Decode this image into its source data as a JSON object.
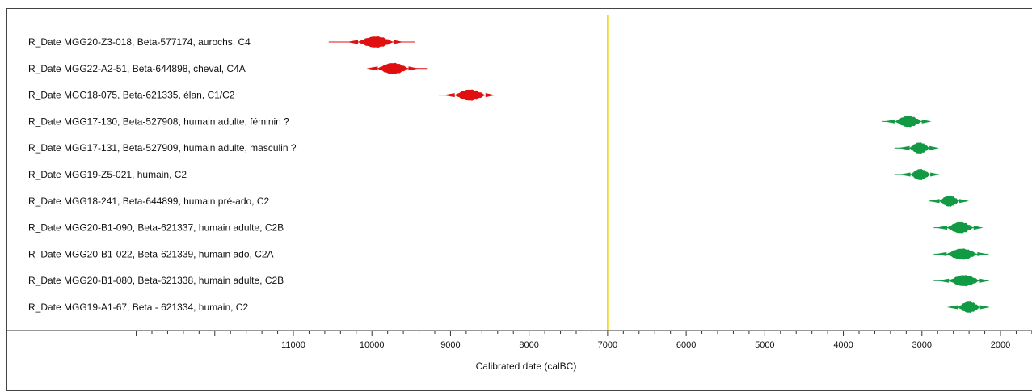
{
  "chart_data": {
    "type": "scatter",
    "xlabel": "Calibrated date (calBC)",
    "xlim": [
      13000,
      1600
    ],
    "x_reversed": true,
    "tick_labels": [
      "11000",
      "10000",
      "9000",
      "8000",
      "7000",
      "6000",
      "5000",
      "4000",
      "3000",
      "2000"
    ],
    "reference_line": {
      "x": 7000,
      "color": "#f2d200"
    },
    "series": [
      {
        "color": "#e01010",
        "rows": [
          0,
          1,
          2
        ]
      },
      {
        "color": "#119944",
        "rows": [
          3,
          4,
          5,
          6,
          7,
          8,
          9,
          10
        ]
      }
    ],
    "rows": [
      {
        "label": "R_Date MGG20-Z3-018, Beta-577174, aurochs, C4",
        "range": [
          10550,
          9450
        ],
        "peak": 9950,
        "color": "#e01010"
      },
      {
        "label": "R_Date MGG22-A2-51, Beta-644898, cheval, C4A",
        "range": [
          10000,
          9300
        ],
        "peak": 9730,
        "color": "#e01010"
      },
      {
        "label": "R_Date MGG18-075, Beta-621335, élan, C1/C2",
        "range": [
          9150,
          8450
        ],
        "peak": 8750,
        "color": "#e01010"
      },
      {
        "label": "R_Date MGG17-130, Beta-527908, humain adulte, féminin ?",
        "range": [
          3500,
          2900
        ],
        "peak": 3170,
        "color": "#119944"
      },
      {
        "label": "R_Date MGG17-131, Beta-527909, humain adulte, masculin ?",
        "range": [
          3350,
          2900
        ],
        "peak": 3030,
        "color": "#119944"
      },
      {
        "label": "R_Date MGG19-Z5-021, humain, C2",
        "range": [
          3350,
          2900
        ],
        "peak": 3020,
        "color": "#119944"
      },
      {
        "label": "R_Date MGG18-241, Beta-644899, humain pré-ado, C2",
        "range": [
          2900,
          2450
        ],
        "peak": 2650,
        "color": "#119944"
      },
      {
        "label": "R_Date MGG20-B1-090, Beta-621337, humain adulte, C2B",
        "range": [
          2850,
          2250
        ],
        "peak": 2510,
        "color": "#119944"
      },
      {
        "label": "R_Date MGG20-B1-022, Beta-621339,  humain ado, C2A",
        "range": [
          2850,
          2150
        ],
        "peak": 2490,
        "color": "#119944"
      },
      {
        "label": "R_Date MGG20-B1-080, Beta-621338, humain adulte, C2B",
        "range": [
          2850,
          2150
        ],
        "peak": 2460,
        "color": "#119944"
      },
      {
        "label": "R_Date MGG19-A1-67, Beta - 621334, humain, C2",
        "range": [
          2650,
          2150
        ],
        "peak": 2400,
        "color": "#119944"
      }
    ]
  }
}
